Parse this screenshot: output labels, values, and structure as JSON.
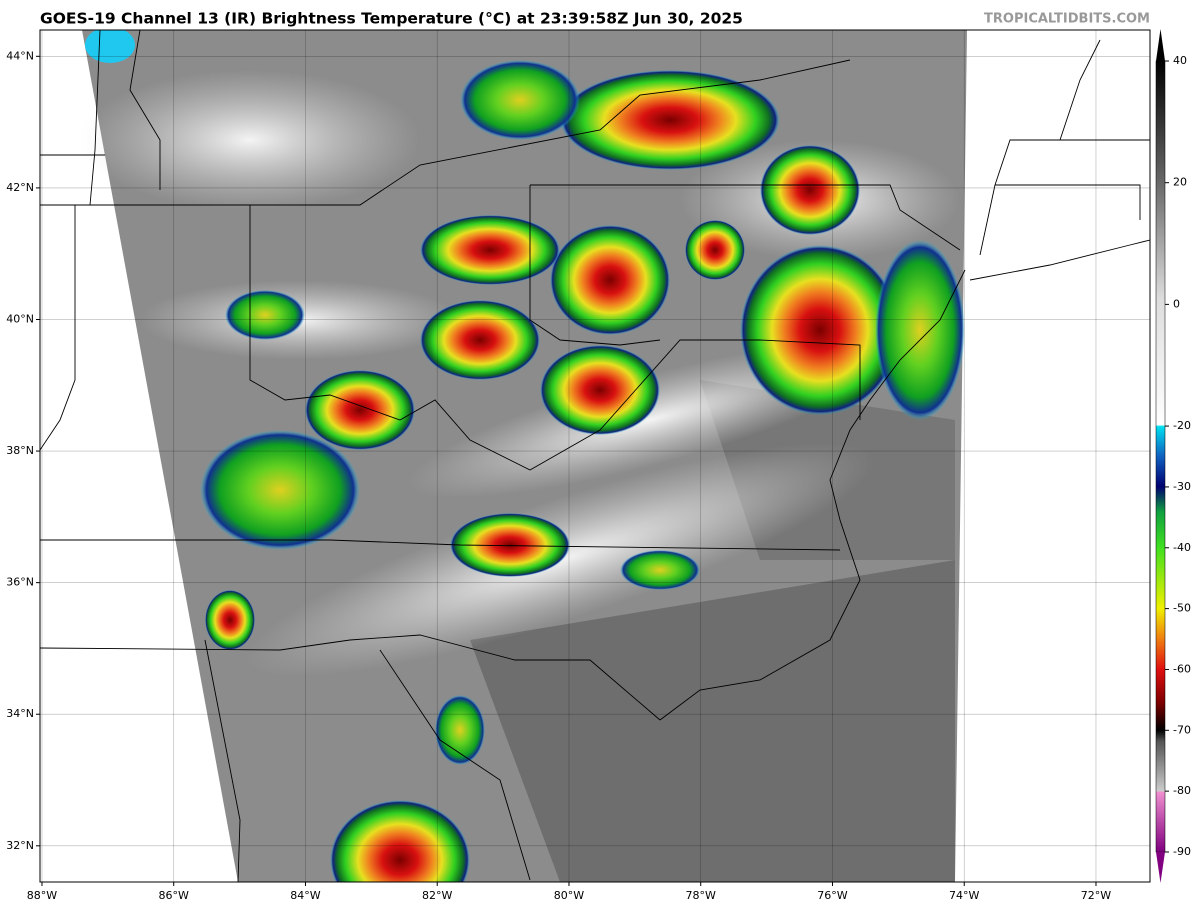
{
  "map": {
    "title": "GOES-19 Channel 13 (IR) Brightness Temperature (°C) at 23:39:58Z Jun 30, 2025",
    "credit": "TROPICALTIDBITS.COM",
    "xlim": [
      -88.03,
      -71.18
    ],
    "ylim": [
      31.45,
      44.4
    ],
    "lat_ticks": [
      {
        "value": 44,
        "label": "44°N"
      },
      {
        "value": 42,
        "label": "42°N"
      },
      {
        "value": 40,
        "label": "40°N"
      },
      {
        "value": 38,
        "label": "38°N"
      },
      {
        "value": 36,
        "label": "36°N"
      },
      {
        "value": 34,
        "label": "34°N"
      },
      {
        "value": 32,
        "label": "32°N"
      }
    ],
    "lon_ticks": [
      {
        "value": -88,
        "label": "88°W"
      },
      {
        "value": -86,
        "label": "86°W"
      },
      {
        "value": -84,
        "label": "84°W"
      },
      {
        "value": -82,
        "label": "82°W"
      },
      {
        "value": -80,
        "label": "80°W"
      },
      {
        "value": -78,
        "label": "78°W"
      },
      {
        "value": -76,
        "label": "76°W"
      },
      {
        "value": -74,
        "label": "74°W"
      },
      {
        "value": -72,
        "label": "72°W"
      }
    ]
  },
  "colorbar": {
    "lim": [
      -90,
      40
    ],
    "ticks": [
      40,
      20,
      0,
      -20,
      -30,
      -40,
      -50,
      -60,
      -70,
      -80,
      -90
    ]
  }
}
